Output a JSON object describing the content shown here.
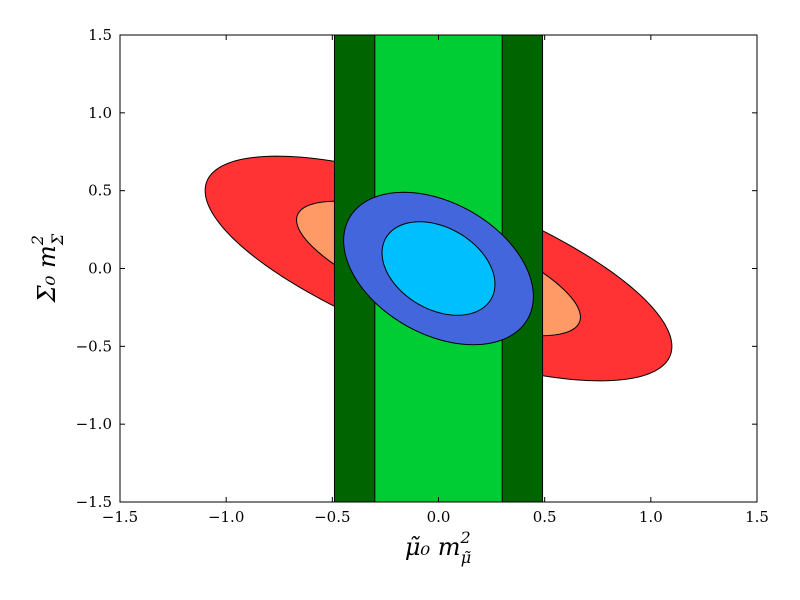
{
  "chart_data": {
    "type": "regions",
    "x_label": {
      "base": "μ̃₀ m",
      "sup": "2",
      "sub": "μ̃"
    },
    "y_label": {
      "base": "Σ₀ m",
      "sup": "2",
      "sub": "Σ"
    },
    "xlim": [
      -1.5,
      1.5
    ],
    "ylim": [
      -1.5,
      1.5
    ],
    "xticks": [
      {
        "value": -1.5,
        "label": "−1.5"
      },
      {
        "value": -1.0,
        "label": "−1.0"
      },
      {
        "value": -0.5,
        "label": "−0.5"
      },
      {
        "value": 0,
        "label": "0.0"
      },
      {
        "value": 0.5,
        "label": "0.5"
      },
      {
        "value": 1.0,
        "label": "1.0"
      },
      {
        "value": 1.5,
        "label": "1.5"
      }
    ],
    "yticks": [
      {
        "value": -1.5,
        "label": "−1.5"
      },
      {
        "value": -1.0,
        "label": "−1.0"
      },
      {
        "value": -0.5,
        "label": "−0.5"
      },
      {
        "value": 0,
        "label": "0.0"
      },
      {
        "value": 0.5,
        "label": "0.5"
      },
      {
        "value": 1.0,
        "label": "1.0"
      },
      {
        "value": 1.5,
        "label": "1.5"
      }
    ],
    "regions": [
      {
        "shape": "ellipse",
        "color": "#ff3333",
        "cx": 0,
        "cy": 0,
        "a": 1.23,
        "b": 0.465,
        "angle": -29
      },
      {
        "shape": "ellipse",
        "color": "#ff9966",
        "cx": 0,
        "cy": 0,
        "a": 0.75,
        "b": 0.266,
        "angle": -29
      },
      {
        "shape": "band",
        "color": "#006400",
        "x0": -0.49,
        "x1": 0.49
      },
      {
        "shape": "band",
        "color": "#00cc33",
        "x0": -0.3,
        "x1": 0.3
      },
      {
        "shape": "ellipse",
        "color": "#4466dd",
        "cx": 0,
        "cy": 0,
        "a": 0.55,
        "b": 0.37,
        "angle": -52
      },
      {
        "shape": "ellipse",
        "color": "#00bfff",
        "cx": 0,
        "cy": 0,
        "a": 0.33,
        "b": 0.228,
        "angle": -55
      }
    ]
  }
}
